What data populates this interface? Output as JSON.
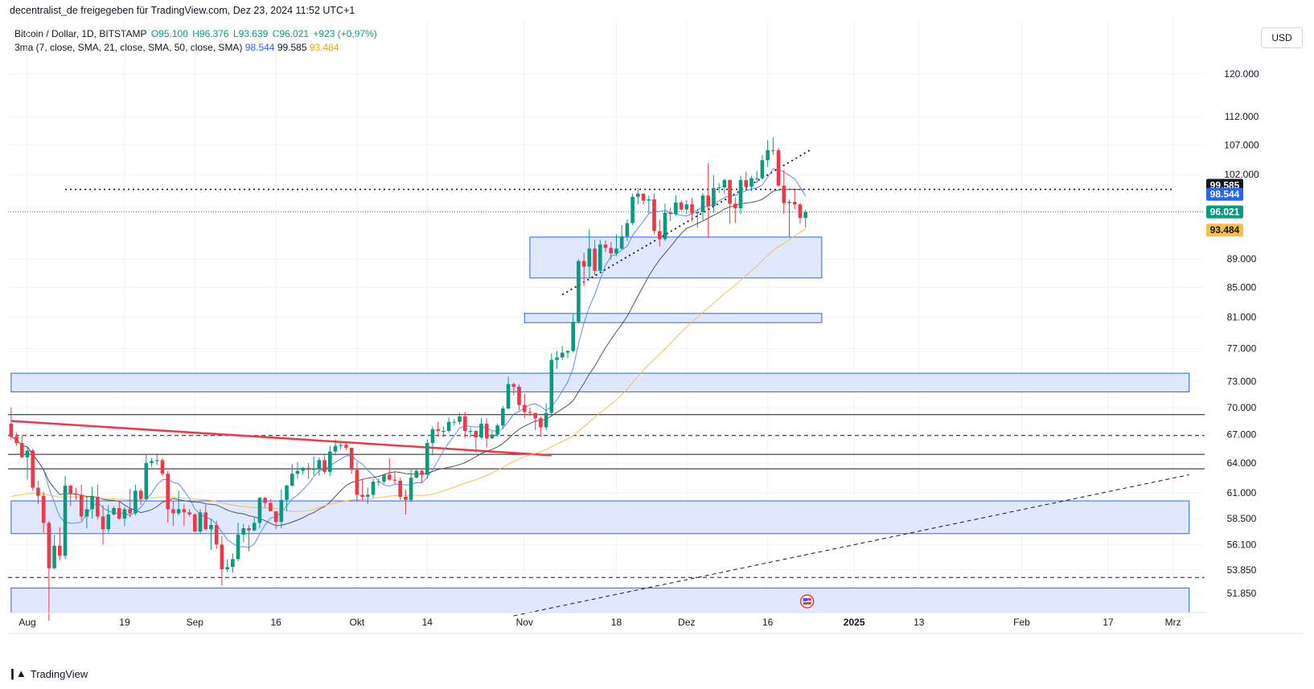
{
  "header": {
    "publisher": "decentralist_de freigegeben für TradingView.com, Dez 23, 2024 11:52 UTC+1"
  },
  "legend": {
    "symbol": "Bitcoin / Dollar, 1D, BITSTAMP",
    "open": "O95.100",
    "high": "H96.376",
    "low": "L93.639",
    "close": "C96.021",
    "change": "+923 (+0,97%)",
    "ma_label": "3ma (7, close, SMA, 21, close, SMA, 50, close, SMA)",
    "ma7": "98.544",
    "ma21": "99.585",
    "ma50": "93.484"
  },
  "currency": "USD",
  "footer": {
    "brand": "TradingView",
    "logo": "tradingview-logo-icon"
  },
  "colors": {
    "up": "#089981",
    "down": "#f23645",
    "ma7": "#5b8def",
    "ma21": "#555555",
    "ma50": "#f5c04a",
    "zone": "#2962ff",
    "zone_fill": "#dbe4ff"
  },
  "chart_data": {
    "type": "candlestick",
    "title": "Bitcoin / Dollar, 1D, BITSTAMP",
    "y_axis": {
      "scale": "log",
      "range": [
        50000,
        125000
      ],
      "ticks": [
        [
          "120.000",
          120000
        ],
        [
          "112.000",
          112000
        ],
        [
          "107.000",
          107000
        ],
        [
          "102.000",
          102000
        ],
        [
          "89.000",
          89000
        ],
        [
          "85.000",
          85000
        ],
        [
          "81.000",
          81000
        ],
        [
          "77.000",
          77000
        ],
        [
          "73.000",
          73000
        ],
        [
          "70.000",
          70000
        ],
        [
          "67.000",
          67000
        ],
        [
          "64.000",
          64000
        ],
        [
          "61.000",
          61000
        ],
        [
          "58.500",
          58500
        ],
        [
          "56.100",
          56100
        ],
        [
          "53.850",
          53850
        ],
        [
          "51.850",
          51850
        ]
      ]
    },
    "x_axis": {
      "start": "2024-07-29",
      "end": "2025-03-04",
      "ticks": [
        [
          "Aug",
          "2024-08-01"
        ],
        [
          "19",
          "2024-08-19"
        ],
        [
          "Sep",
          "2024-09-01"
        ],
        [
          "16",
          "2024-09-16"
        ],
        [
          "Okt",
          "2024-10-01"
        ],
        [
          "14",
          "2024-10-14"
        ],
        [
          "Nov",
          "2024-11-01"
        ],
        [
          "18",
          "2024-11-18"
        ],
        [
          "Dez",
          "2024-12-01"
        ],
        [
          "16",
          "2024-12-16"
        ],
        [
          "2025",
          "2025-01-01"
        ],
        [
          "13",
          "2025-01-13"
        ],
        [
          "Feb",
          "2025-02-01"
        ],
        [
          "17",
          "2025-02-17"
        ],
        [
          "Mrz",
          "2025-03-01"
        ]
      ]
    },
    "price_labels": [
      {
        "text": "99.585",
        "value": 99585,
        "bg": "#131722",
        "color": "#ffffff"
      },
      {
        "text": "98.544",
        "value": 98544,
        "bg": "#2962ff",
        "color": "#ffffff"
      },
      {
        "text": "96.021",
        "value": 96021,
        "bg": "#089981",
        "color": "#ffffff"
      },
      {
        "text": "93.484",
        "value": 93484,
        "bg": "#f5c04a",
        "color": "#131722"
      }
    ],
    "zones": [
      {
        "from": "2024-07-29",
        "to": "2025-03-04",
        "low": 71800,
        "high": 74000
      },
      {
        "from": "2024-07-29",
        "to": "2025-03-04",
        "low": 57100,
        "high": 60200
      },
      {
        "from": "2024-07-29",
        "to": "2025-03-04",
        "low": 50000,
        "high": 52300
      },
      {
        "from": "2024-11-02",
        "to": "2024-12-26",
        "low": 86300,
        "high": 92200
      },
      {
        "from": "2024-11-01",
        "to": "2024-12-26",
        "low": 80300,
        "high": 81500
      }
    ],
    "hlines": [
      {
        "value": 69200,
        "style": "solid"
      },
      {
        "value": 66900,
        "style": "dashed"
      },
      {
        "value": 64900,
        "style": "solid"
      },
      {
        "value": 63400,
        "style": "solid"
      },
      {
        "value": 53200,
        "style": "dashed"
      },
      {
        "value": 99585,
        "style": "dotted",
        "from": "2024-08-08",
        "to": "2025-03-01"
      }
    ],
    "trendlines": [
      {
        "from": [
          "2024-07-29",
          68500
        ],
        "to": [
          "2024-11-06",
          64800
        ],
        "style": "solid",
        "color": "#f23645"
      },
      {
        "from": [
          "2024-10-30",
          50000
        ],
        "to": [
          "2025-03-04",
          62800
        ],
        "style": "dashed",
        "color": "#131722"
      },
      {
        "from": [
          "2024-11-08",
          84000
        ],
        "to": [
          "2024-12-24",
          106200
        ],
        "style": "dotted",
        "color": "#131722"
      }
    ],
    "candles": [
      [
        "2024-07-29",
        68200,
        70000,
        66500,
        66800
      ],
      [
        "2024-07-30",
        66800,
        67200,
        65800,
        66100
      ],
      [
        "2024-07-31",
        66100,
        66900,
        64500,
        64600
      ],
      [
        "2024-08-01",
        64600,
        65600,
        62300,
        65300
      ],
      [
        "2024-08-02",
        65300,
        65500,
        61200,
        61500
      ],
      [
        "2024-08-03",
        61500,
        62200,
        59900,
        60700
      ],
      [
        "2024-08-04",
        60700,
        61100,
        57200,
        58100
      ],
      [
        "2024-08-05",
        58100,
        58300,
        49600,
        54000
      ],
      [
        "2024-08-06",
        54000,
        57000,
        53900,
        56000
      ],
      [
        "2024-08-07",
        56000,
        57700,
        54700,
        55100
      ],
      [
        "2024-08-08",
        55100,
        62700,
        54800,
        61700
      ],
      [
        "2024-08-09",
        61700,
        61800,
        59700,
        60900
      ],
      [
        "2024-08-10",
        60900,
        61500,
        60300,
        60800
      ],
      [
        "2024-08-11",
        60800,
        61800,
        58300,
        58700
      ],
      [
        "2024-08-12",
        58700,
        60700,
        57600,
        59400
      ],
      [
        "2024-08-13",
        59400,
        61600,
        58500,
        60600
      ],
      [
        "2024-08-14",
        60600,
        61800,
        58400,
        58700
      ],
      [
        "2024-08-15",
        58700,
        59800,
        56100,
        57500
      ],
      [
        "2024-08-16",
        57500,
        59800,
        57200,
        58900
      ],
      [
        "2024-08-17",
        58900,
        59700,
        58800,
        59500
      ],
      [
        "2024-08-18",
        59500,
        60200,
        58400,
        58500
      ],
      [
        "2024-08-19",
        58500,
        59600,
        57800,
        59400
      ],
      [
        "2024-08-20",
        59400,
        61400,
        58600,
        59000
      ],
      [
        "2024-08-21",
        59000,
        61800,
        58800,
        61200
      ],
      [
        "2024-08-22",
        61200,
        61400,
        59800,
        60400
      ],
      [
        "2024-08-23",
        60400,
        64900,
        60300,
        64000
      ],
      [
        "2024-08-24",
        64000,
        64500,
        63600,
        64200
      ],
      [
        "2024-08-25",
        64200,
        65000,
        63800,
        64300
      ],
      [
        "2024-08-26",
        64300,
        64500,
        62700,
        62900
      ],
      [
        "2024-08-27",
        62900,
        63200,
        58100,
        59400
      ],
      [
        "2024-08-28",
        59400,
        60200,
        57800,
        59000
      ],
      [
        "2024-08-29",
        59000,
        61200,
        58800,
        59400
      ],
      [
        "2024-08-30",
        59400,
        59900,
        57800,
        59100
      ],
      [
        "2024-08-31",
        59100,
        59400,
        58700,
        58900
      ],
      [
        "2024-09-01",
        58900,
        59000,
        57200,
        57300
      ],
      [
        "2024-09-02",
        57300,
        59400,
        57100,
        59100
      ],
      [
        "2024-09-03",
        59100,
        59800,
        57400,
        57500
      ],
      [
        "2024-09-04",
        57500,
        58500,
        55600,
        57900
      ],
      [
        "2024-09-05",
        57900,
        58300,
        55700,
        56100
      ],
      [
        "2024-09-06",
        56100,
        56900,
        52500,
        53900
      ],
      [
        "2024-09-07",
        53900,
        54800,
        53700,
        54100
      ],
      [
        "2024-09-08",
        54100,
        55300,
        53600,
        54800
      ],
      [
        "2024-09-09",
        54800,
        58100,
        54600,
        57000
      ],
      [
        "2024-09-10",
        57000,
        58000,
        56300,
        57600
      ],
      [
        "2024-09-11",
        57600,
        57900,
        55500,
        57400
      ],
      [
        "2024-09-12",
        57400,
        58600,
        57300,
        58100
      ],
      [
        "2024-09-13",
        58100,
        60600,
        57600,
        60500
      ],
      [
        "2024-09-14",
        60500,
        60600,
        59500,
        60000
      ],
      [
        "2024-09-15",
        60000,
        60400,
        59200,
        59200
      ],
      [
        "2024-09-16",
        59200,
        59200,
        57500,
        58200
      ],
      [
        "2024-09-17",
        58200,
        61300,
        57600,
        60300
      ],
      [
        "2024-09-18",
        60300,
        61800,
        59200,
        61700
      ],
      [
        "2024-09-19",
        61700,
        63900,
        61600,
        62900
      ],
      [
        "2024-09-20",
        62900,
        64100,
        62400,
        63200
      ],
      [
        "2024-09-21",
        63200,
        63600,
        62800,
        63500
      ],
      [
        "2024-09-22",
        63500,
        64000,
        62400,
        63300
      ],
      [
        "2024-09-23",
        63300,
        64700,
        62700,
        63400
      ],
      [
        "2024-09-24",
        63400,
        64600,
        62700,
        64300
      ],
      [
        "2024-09-25",
        64300,
        64800,
        62900,
        63100
      ],
      [
        "2024-09-26",
        63100,
        65800,
        62700,
        65200
      ],
      [
        "2024-09-27",
        65200,
        66500,
        64800,
        65800
      ],
      [
        "2024-09-28",
        65800,
        66200,
        65400,
        65900
      ],
      [
        "2024-09-29",
        65900,
        66100,
        65400,
        65600
      ],
      [
        "2024-09-30",
        65600,
        65600,
        62900,
        63300
      ],
      [
        "2024-10-01",
        63300,
        64100,
        60100,
        60800
      ],
      [
        "2024-10-02",
        60800,
        62400,
        60200,
        60600
      ],
      [
        "2024-10-03",
        60600,
        61500,
        59900,
        60800
      ],
      [
        "2024-10-04",
        60800,
        62400,
        60500,
        62100
      ],
      [
        "2024-10-05",
        62100,
        62400,
        61700,
        62100
      ],
      [
        "2024-10-06",
        62100,
        62900,
        61900,
        62800
      ],
      [
        "2024-10-07",
        62800,
        64500,
        62200,
        62300
      ],
      [
        "2024-10-08",
        62300,
        63200,
        61800,
        62200
      ],
      [
        "2024-10-09",
        62200,
        62500,
        60300,
        60600
      ],
      [
        "2024-10-10",
        60600,
        61300,
        58900,
        60300
      ],
      [
        "2024-10-11",
        60300,
        63400,
        60100,
        62500
      ],
      [
        "2024-10-12",
        62500,
        63500,
        62400,
        63200
      ],
      [
        "2024-10-13",
        63200,
        63300,
        62000,
        62800
      ],
      [
        "2024-10-14",
        62800,
        66500,
        62400,
        66100
      ],
      [
        "2024-10-15",
        66100,
        67900,
        64800,
        67600
      ],
      [
        "2024-10-16",
        67600,
        68400,
        66800,
        67400
      ],
      [
        "2024-10-17",
        67400,
        67900,
        66700,
        67400
      ],
      [
        "2024-10-18",
        67400,
        68900,
        67200,
        68400
      ],
      [
        "2024-10-19",
        68400,
        68700,
        68000,
        68400
      ],
      [
        "2024-10-20",
        68400,
        69400,
        68100,
        69000
      ],
      [
        "2024-10-21",
        69000,
        69500,
        66600,
        67400
      ],
      [
        "2024-10-22",
        67400,
        67800,
        66700,
        67400
      ],
      [
        "2024-10-23",
        67400,
        67500,
        65100,
        66700
      ],
      [
        "2024-10-24",
        66700,
        68800,
        66500,
        68200
      ],
      [
        "2024-10-25",
        68200,
        68800,
        65600,
        66600
      ],
      [
        "2024-10-26",
        66600,
        67400,
        66500,
        67000
      ],
      [
        "2024-10-27",
        67000,
        68200,
        66800,
        68000
      ],
      [
        "2024-10-28",
        68000,
        70200,
        67600,
        69900
      ],
      [
        "2024-10-29",
        69900,
        73600,
        69800,
        72700
      ],
      [
        "2024-10-30",
        72700,
        72900,
        71400,
        72400
      ],
      [
        "2024-10-31",
        72400,
        72700,
        69700,
        70300
      ],
      [
        "2024-11-01",
        70300,
        71600,
        68800,
        69500
      ],
      [
        "2024-11-02",
        69500,
        70000,
        69000,
        69400
      ],
      [
        "2024-11-03",
        69400,
        69400,
        67500,
        68800
      ],
      [
        "2024-11-04",
        68800,
        69000,
        66800,
        67800
      ],
      [
        "2024-11-05",
        67800,
        70500,
        67500,
        69400
      ],
      [
        "2024-11-06",
        69400,
        76400,
        69100,
        75600
      ],
      [
        "2024-11-07",
        75600,
        76700,
        74500,
        75900
      ],
      [
        "2024-11-08",
        75900,
        77300,
        75600,
        76500
      ],
      [
        "2024-11-09",
        76500,
        76800,
        75800,
        76700
      ],
      [
        "2024-11-10",
        76700,
        81500,
        76500,
        80400
      ],
      [
        "2024-11-11",
        80400,
        89000,
        80200,
        88700
      ],
      [
        "2024-11-12",
        88700,
        89900,
        85200,
        87900
      ],
      [
        "2024-11-13",
        87900,
        93400,
        86300,
        90500
      ],
      [
        "2024-11-14",
        90500,
        91800,
        86700,
        87300
      ],
      [
        "2024-11-15",
        87300,
        91800,
        87100,
        91100
      ],
      [
        "2024-11-16",
        91100,
        91700,
        90000,
        90600
      ],
      [
        "2024-11-17",
        90600,
        91500,
        88900,
        89800
      ],
      [
        "2024-11-18",
        89800,
        92600,
        89400,
        90500
      ],
      [
        "2024-11-19",
        90500,
        94000,
        90400,
        92300
      ],
      [
        "2024-11-20",
        92300,
        94900,
        91600,
        94300
      ],
      [
        "2024-11-21",
        94300,
        98900,
        94000,
        98400
      ],
      [
        "2024-11-22",
        98400,
        99800,
        97200,
        98900
      ],
      [
        "2024-11-23",
        98900,
        98900,
        97200,
        97800
      ],
      [
        "2024-11-24",
        97800,
        98600,
        95800,
        98000
      ],
      [
        "2024-11-25",
        98000,
        98900,
        92600,
        93100
      ],
      [
        "2024-11-26",
        93100,
        94800,
        90800,
        91900
      ],
      [
        "2024-11-27",
        91900,
        97300,
        91600,
        95900
      ],
      [
        "2024-11-28",
        95900,
        96700,
        94600,
        95700
      ],
      [
        "2024-11-29",
        95700,
        98700,
        95400,
        97500
      ],
      [
        "2024-11-30",
        97500,
        97800,
        96300,
        96400
      ],
      [
        "2024-12-01",
        96400,
        97900,
        95700,
        97200
      ],
      [
        "2024-12-02",
        97200,
        98200,
        94500,
        95800
      ],
      [
        "2024-12-03",
        95800,
        96300,
        93600,
        96000
      ],
      [
        "2024-12-04",
        96000,
        99000,
        94600,
        98600
      ],
      [
        "2024-12-05",
        98600,
        103900,
        92100,
        96900
      ],
      [
        "2024-12-06",
        96900,
        101900,
        95900,
        99800
      ],
      [
        "2024-12-07",
        99800,
        100600,
        99000,
        99900
      ],
      [
        "2024-12-08",
        99900,
        101300,
        98900,
        101100
      ],
      [
        "2024-12-09",
        101100,
        101200,
        94200,
        97300
      ],
      [
        "2024-12-10",
        97300,
        98300,
        94300,
        96600
      ],
      [
        "2024-12-11",
        96600,
        101800,
        95700,
        101100
      ],
      [
        "2024-12-12",
        101100,
        102500,
        99300,
        100000
      ],
      [
        "2024-12-13",
        100000,
        101800,
        99300,
        101400
      ],
      [
        "2024-12-14",
        101400,
        102600,
        100600,
        101400
      ],
      [
        "2024-12-15",
        101400,
        105200,
        101200,
        104400
      ],
      [
        "2024-12-16",
        104400,
        107800,
        103300,
        106100
      ],
      [
        "2024-12-17",
        106100,
        108300,
        105300,
        106100
      ],
      [
        "2024-12-18",
        106100,
        106500,
        100000,
        100200
      ],
      [
        "2024-12-19",
        100200,
        102800,
        95700,
        97400
      ],
      [
        "2024-12-20",
        97400,
        98000,
        92200,
        97600
      ],
      [
        "2024-12-21",
        97600,
        99500,
        96400,
        97200
      ],
      [
        "2024-12-22",
        97200,
        97400,
        94200,
        95100
      ],
      [
        "2024-12-23",
        95100,
        96400,
        93600,
        96000
      ]
    ]
  }
}
